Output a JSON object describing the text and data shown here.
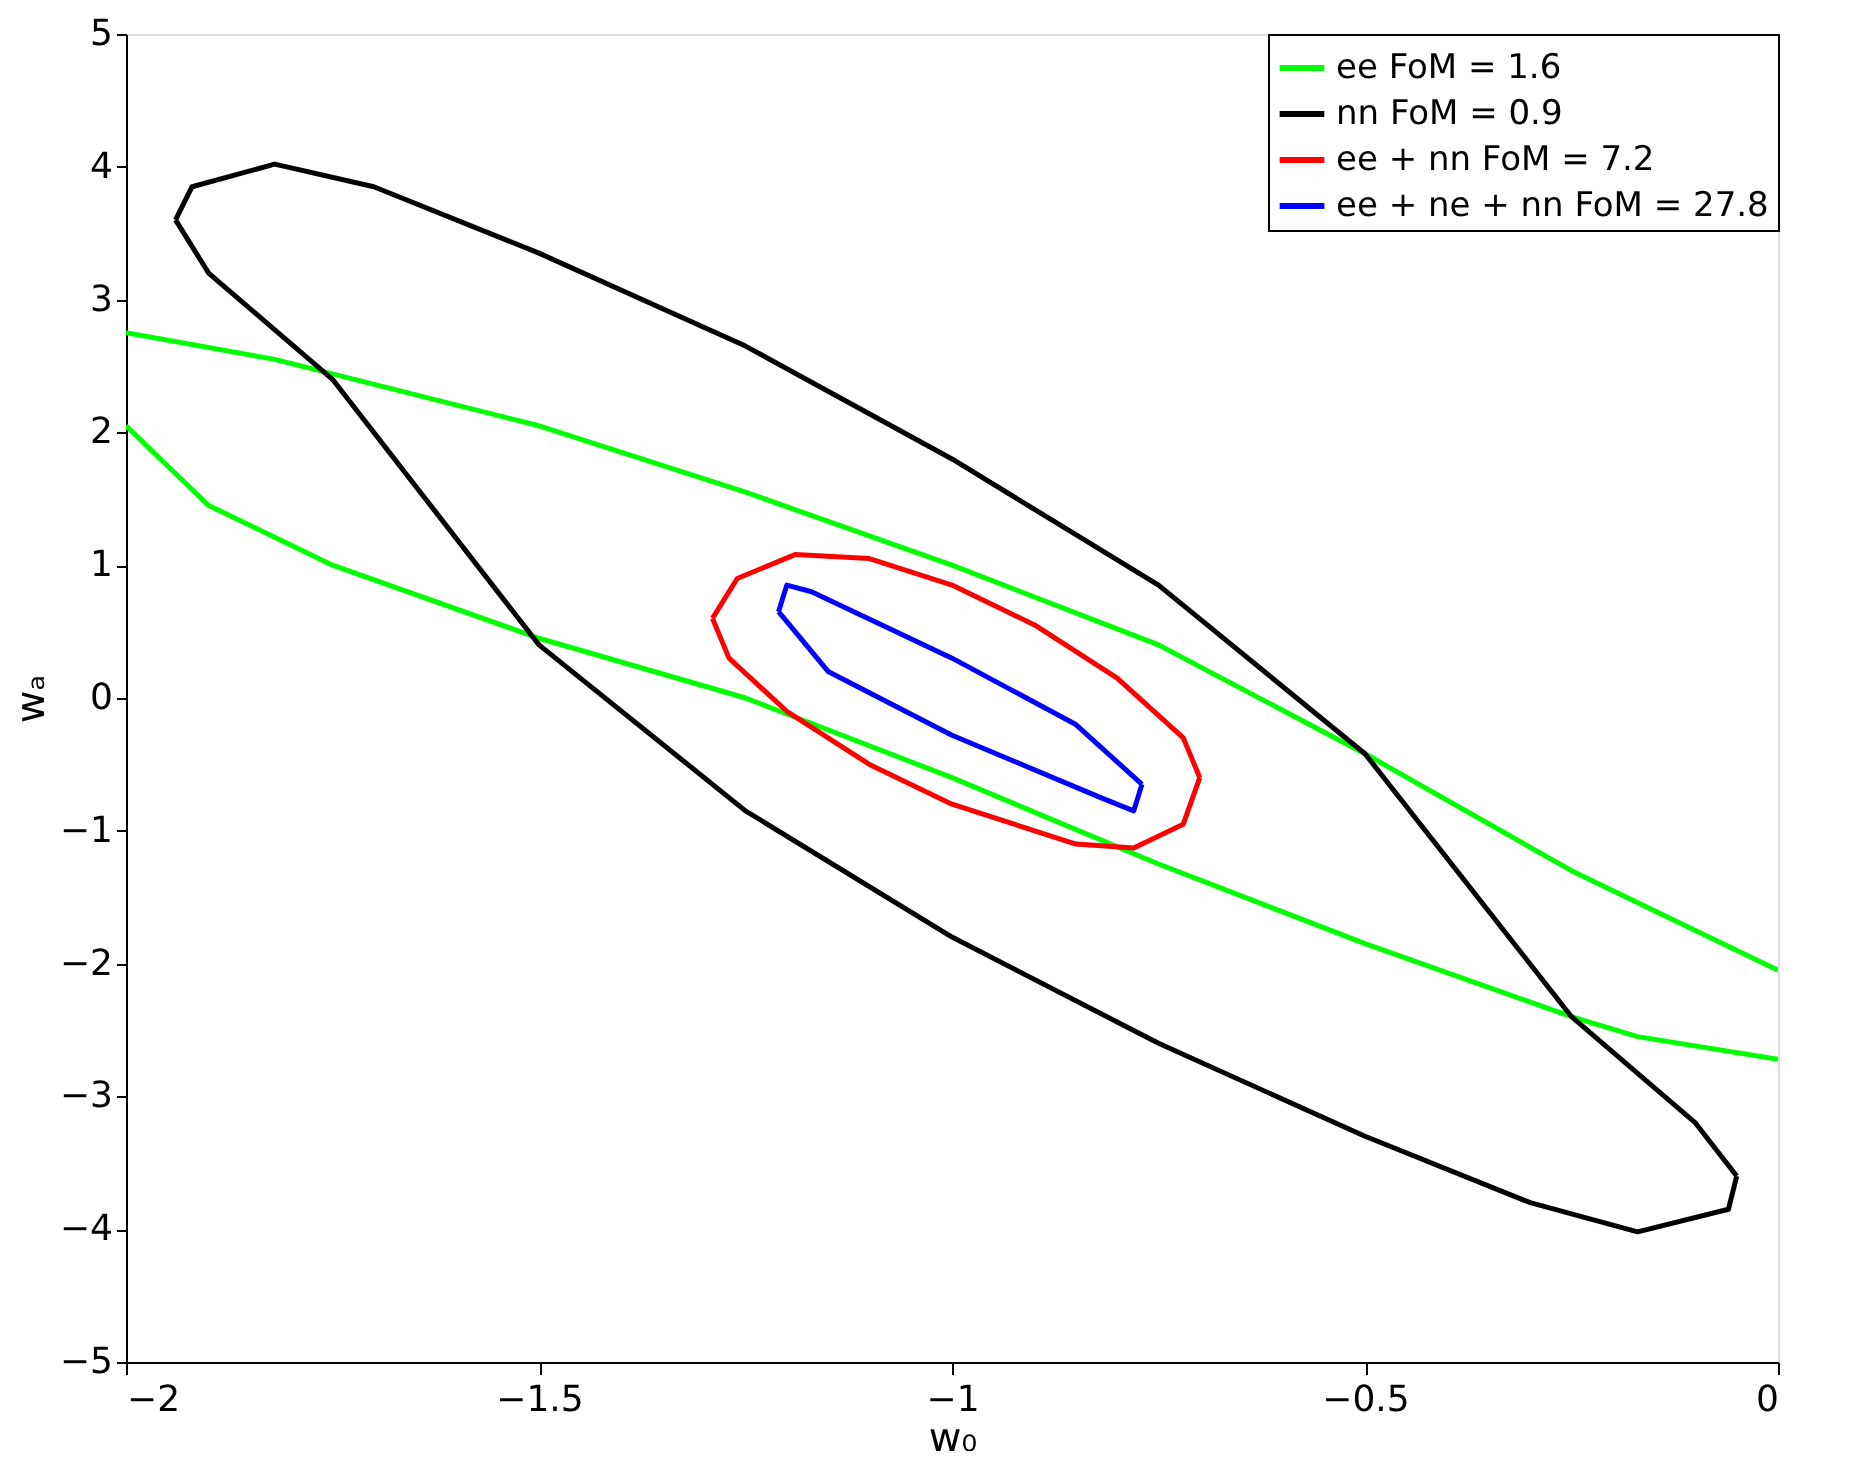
{
  "chart_data": {
    "type": "line",
    "xlabel": "w₀",
    "ylabel": "wₐ",
    "xlim": [
      -2,
      0
    ],
    "ylim": [
      -5,
      5
    ],
    "xticks": [
      {
        "value": -2,
        "label": "−2"
      },
      {
        "value": -1.5,
        "label": "−1.5"
      },
      {
        "value": -1,
        "label": "−1"
      },
      {
        "value": -0.5,
        "label": "−0.5"
      },
      {
        "value": 0,
        "label": "0"
      }
    ],
    "yticks": [
      {
        "value": -5,
        "label": "−5"
      },
      {
        "value": -4,
        "label": "−4"
      },
      {
        "value": -3,
        "label": "−3"
      },
      {
        "value": -2,
        "label": "−2"
      },
      {
        "value": -1,
        "label": "−1"
      },
      0,
      1,
      2,
      3,
      4,
      5
    ],
    "grid": false,
    "legend": "top right",
    "line_style": "solid",
    "marker": "none",
    "series": [
      {
        "name": "ee FoM = 1.6",
        "color": "#00ff00",
        "x": [
          -2,
          -1.82,
          -1.5,
          -1.25,
          -1,
          -0.75,
          -0.5,
          -0.25,
          -0.1,
          0,
          null,
          0,
          -0.17,
          -0.25,
          -0.5,
          -0.75,
          -1,
          -1.25,
          -1.5,
          -1.75,
          -1.9,
          -2
        ],
        "values": [
          2.75,
          2.55,
          2.05,
          1.55,
          1.0,
          0.4,
          -0.42,
          -1.3,
          -1.75,
          -2.05,
          null,
          -2.72,
          -2.55,
          -2.4,
          -1.85,
          -1.25,
          -0.6,
          0.0,
          0.45,
          1.0,
          1.45,
          2.05
        ]
      },
      {
        "name": "nn FoM = 0.9",
        "color": "#000000",
        "x": [
          -1.94,
          -1.92,
          -1.82,
          -1.7,
          -1.5,
          -1.25,
          -1.0,
          -0.75,
          -0.5,
          -0.25,
          -0.1,
          -0.05,
          null,
          -1.94,
          -1.9,
          -1.75,
          -1.5,
          -1.25,
          -1.0,
          -0.75,
          -0.5,
          -0.3,
          -0.17,
          -0.06,
          -0.05
        ],
        "values": [
          3.6,
          3.85,
          4.02,
          3.85,
          3.35,
          2.65,
          1.8,
          0.85,
          -0.42,
          -2.4,
          -3.2,
          -3.6,
          null,
          3.6,
          3.2,
          2.4,
          0.4,
          -0.85,
          -1.8,
          -2.6,
          -3.3,
          -3.8,
          -4.02,
          -3.85,
          -3.6
        ]
      },
      {
        "name": "ee + nn FoM = 7.2",
        "color": "#ff0000",
        "x": [
          -1.29,
          -1.26,
          -1.19,
          -1.1,
          -1.0,
          -0.9,
          -0.8,
          -0.72,
          -0.7,
          null,
          -1.29,
          -1.27,
          -1.2,
          -1.1,
          -1.0,
          -0.85,
          -0.78,
          -0.72,
          -0.7
        ],
        "values": [
          0.6,
          0.9,
          1.08,
          1.05,
          0.85,
          0.55,
          0.15,
          -0.3,
          -0.6,
          null,
          0.6,
          0.3,
          -0.1,
          -0.5,
          -0.8,
          -1.1,
          -1.13,
          -0.95,
          -0.6
        ]
      },
      {
        "name": "ee + ne + nn FoM = 27.8",
        "color": "#0000ff",
        "x": [
          -1.21,
          -1.2,
          -1.17,
          -1.0,
          -0.85,
          -0.77,
          null,
          -1.21,
          -1.15,
          -1.0,
          -0.82,
          -0.78,
          -0.77
        ],
        "values": [
          0.65,
          0.85,
          0.8,
          0.3,
          -0.2,
          -0.65,
          null,
          0.65,
          0.2,
          -0.28,
          -0.75,
          -0.85,
          -0.65
        ]
      }
    ]
  }
}
